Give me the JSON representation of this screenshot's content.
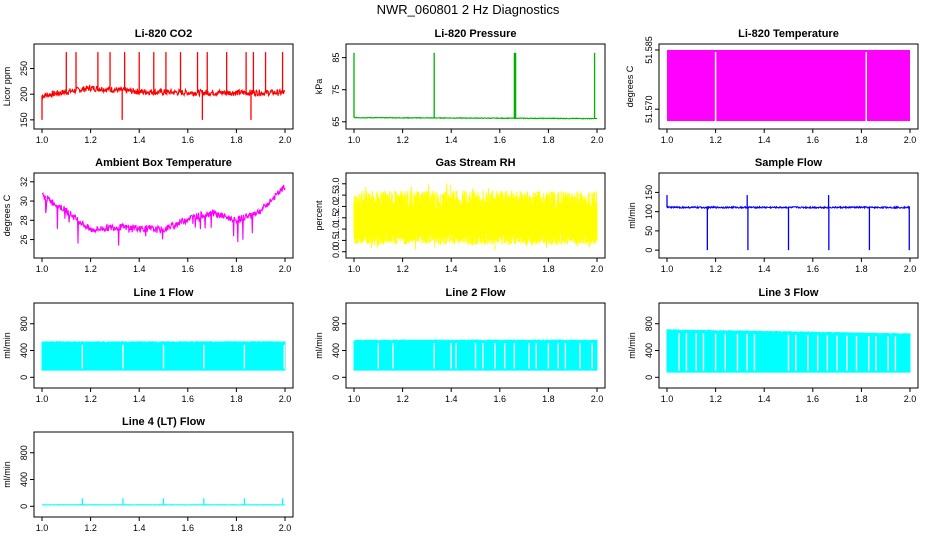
{
  "title": "NWR_060801  2 Hz Diagnostics",
  "chart_data": [
    {
      "id": "co2",
      "type": "line",
      "title": "Li-820 CO2",
      "ylabel": "Licor ppm",
      "color": "#ff0000",
      "xlim": [
        1.0,
        2.0
      ],
      "ylim": [
        140,
        290
      ],
      "yticks": [
        150,
        200,
        250
      ],
      "ytick_labels": [
        "150",
        "200",
        "250"
      ],
      "baseline": [
        [
          1.0,
          197
        ],
        [
          1.2,
          212
        ],
        [
          1.4,
          205
        ],
        [
          1.6,
          203
        ],
        [
          1.8,
          203
        ],
        [
          2.0,
          203
        ]
      ],
      "noise": 6,
      "spikes_up": [
        1.1,
        1.14,
        1.23,
        1.28,
        1.34,
        1.4,
        1.46,
        1.51,
        1.57,
        1.64,
        1.68,
        1.76,
        1.84,
        1.87,
        1.92,
        1.99
      ],
      "spike_up_to": 282,
      "spikes_down": [
        1.0,
        1.33,
        1.66,
        1.86
      ],
      "spike_down_to": 150
    },
    {
      "id": "pressure",
      "type": "line",
      "title": "Li-820 Pressure",
      "ylabel": "kPa",
      "color": "#00b000",
      "xlim": [
        1.0,
        2.0
      ],
      "ylim": [
        64,
        88
      ],
      "yticks": [
        65,
        75,
        85
      ],
      "ytick_labels": [
        "65",
        "75",
        "85"
      ],
      "baseline": [
        [
          1.0,
          66.3
        ],
        [
          2.0,
          66.0
        ]
      ],
      "noise": 0.1,
      "spikes_up": [
        1.0,
        1.33,
        1.66,
        1.665,
        1.99
      ],
      "spike_up_to": 86.5
    },
    {
      "id": "licor_temp",
      "type": "fill",
      "title": "Li-820 Temperature",
      "ylabel": "degrees C",
      "color": "#ff00ff",
      "xlim": [
        1.0,
        2.0
      ],
      "ylim": [
        51.566,
        51.5855
      ],
      "fill_range": [
        51.567,
        51.585
      ],
      "yticks": [
        51.57,
        51.585
      ],
      "ytick_labels": [
        "51.570",
        "51.585"
      ],
      "gaps": [
        1.2,
        1.82
      ]
    },
    {
      "id": "box_temp",
      "type": "line",
      "title": "Ambient Box Temperature",
      "ylabel": "degrees C",
      "color": "#ff00ff",
      "xlim": [
        1.0,
        2.0
      ],
      "ylim": [
        24.5,
        32.5
      ],
      "yticks": [
        26,
        28,
        30,
        32
      ],
      "ytick_labels": [
        "26",
        "28",
        "30",
        "32"
      ],
      "baseline": [
        [
          1.0,
          30.6
        ],
        [
          1.1,
          29.0
        ],
        [
          1.2,
          27.0
        ],
        [
          1.3,
          27.3
        ],
        [
          1.4,
          27.2
        ],
        [
          1.5,
          27.0
        ],
        [
          1.6,
          28.2
        ],
        [
          1.7,
          28.8
        ],
        [
          1.8,
          28.0
        ],
        [
          1.9,
          29.0
        ],
        [
          2.0,
          31.5
        ]
      ],
      "noise": 0.35,
      "drops": 24,
      "drop_by": 2.2
    },
    {
      "id": "rh",
      "type": "band",
      "title": "Gas Stream RH",
      "ylabel": "percent",
      "color": "#ffff00",
      "xlim": [
        1.0,
        2.0
      ],
      "ylim": [
        -0.1,
        3.3
      ],
      "band_low": 0.3,
      "band_high": 2.7,
      "extreme_low": 0.0,
      "extreme_high": 3.1,
      "yticks": [
        0.0,
        0.5,
        1.0,
        1.5,
        2.0,
        2.5,
        3.0
      ],
      "ytick_labels": [
        "0.0",
        "0.5",
        "1.0",
        "1.5",
        "2.0",
        "2.5",
        "3.0"
      ]
    },
    {
      "id": "sample_flow",
      "type": "line",
      "title": "Sample Flow",
      "ylabel": "ml/min",
      "color": "#0000ff",
      "xlim": [
        1.0,
        2.0
      ],
      "ylim": [
        -10,
        190
      ],
      "yticks": [
        0,
        50,
        100,
        150
      ],
      "ytick_labels": [
        "0",
        "50",
        "100",
        "150"
      ],
      "baseline": [
        [
          1.0,
          111
        ],
        [
          2.0,
          111
        ]
      ],
      "noise": 2,
      "spikes_down": [
        1.166,
        1.333,
        1.5,
        1.666,
        1.833,
        1.997
      ],
      "spike_down_to": 0,
      "spikes_up": [
        1.0,
        1.33,
        1.665
      ],
      "spike_up_to": 143
    },
    {
      "id": "line1",
      "type": "band",
      "title": "Line 1 Flow",
      "ylabel": "ml/min",
      "color": "#00ffff",
      "xlim": [
        1.0,
        2.0
      ],
      "ylim": [
        -100,
        1050
      ],
      "band_low": 100,
      "band_high": 530,
      "yticks": [
        0,
        400,
        800
      ],
      "ytick_labels": [
        "0",
        "400",
        "800"
      ],
      "gaps": [
        1.166,
        1.333,
        1.5,
        1.666,
        1.833,
        1.997
      ]
    },
    {
      "id": "line2",
      "type": "band",
      "title": "Line 2 Flow",
      "ylabel": "ml/min",
      "color": "#00ffff",
      "xlim": [
        1.0,
        2.0
      ],
      "ylim": [
        -100,
        1050
      ],
      "band_low": 100,
      "band_high": 555,
      "yticks": [
        0,
        400,
        800
      ],
      "ytick_labels": [
        "0",
        "400",
        "800"
      ],
      "gaps": [
        1.1,
        1.16,
        1.33,
        1.4,
        1.42,
        1.5,
        1.53,
        1.58,
        1.62,
        1.66,
        1.72,
        1.75,
        1.8,
        1.84,
        1.87,
        1.93,
        1.98
      ]
    },
    {
      "id": "line3",
      "type": "band",
      "title": "Line 3 Flow",
      "ylabel": "ml/min",
      "color": "#00ffff",
      "xlim": [
        1.0,
        2.0
      ],
      "ylim": [
        -100,
        1050
      ],
      "band_low": 70,
      "band_high_start": 710,
      "band_high_end": 650,
      "yticks": [
        0,
        400,
        800
      ],
      "ytick_labels": [
        "0",
        "400",
        "800"
      ],
      "gaps": [
        1.05,
        1.08,
        1.12,
        1.15,
        1.2,
        1.24,
        1.29,
        1.33,
        1.36,
        1.5,
        1.53,
        1.58,
        1.62,
        1.66,
        1.7,
        1.74,
        1.78,
        1.83,
        1.86,
        1.91,
        1.94
      ]
    },
    {
      "id": "line4",
      "type": "line",
      "title": "Line 4 (LT) Flow",
      "ylabel": "ml/min",
      "color": "#00ffff",
      "xlim": [
        1.0,
        2.0
      ],
      "ylim": [
        -100,
        1050
      ],
      "yticks": [
        0,
        400,
        800
      ],
      "ytick_labels": [
        "0",
        "400",
        "800"
      ],
      "baseline": [
        [
          1.0,
          22
        ],
        [
          2.0,
          22
        ]
      ],
      "noise": 2,
      "spikes_up": [
        1.166,
        1.333,
        1.5,
        1.666,
        1.833,
        1.99
      ],
      "spike_up_to": 120
    }
  ],
  "xticks": [
    1.0,
    1.2,
    1.4,
    1.6,
    1.8,
    2.0
  ],
  "xtick_labels": [
    "1.0",
    "1.2",
    "1.4",
    "1.6",
    "1.8",
    "2.0"
  ]
}
